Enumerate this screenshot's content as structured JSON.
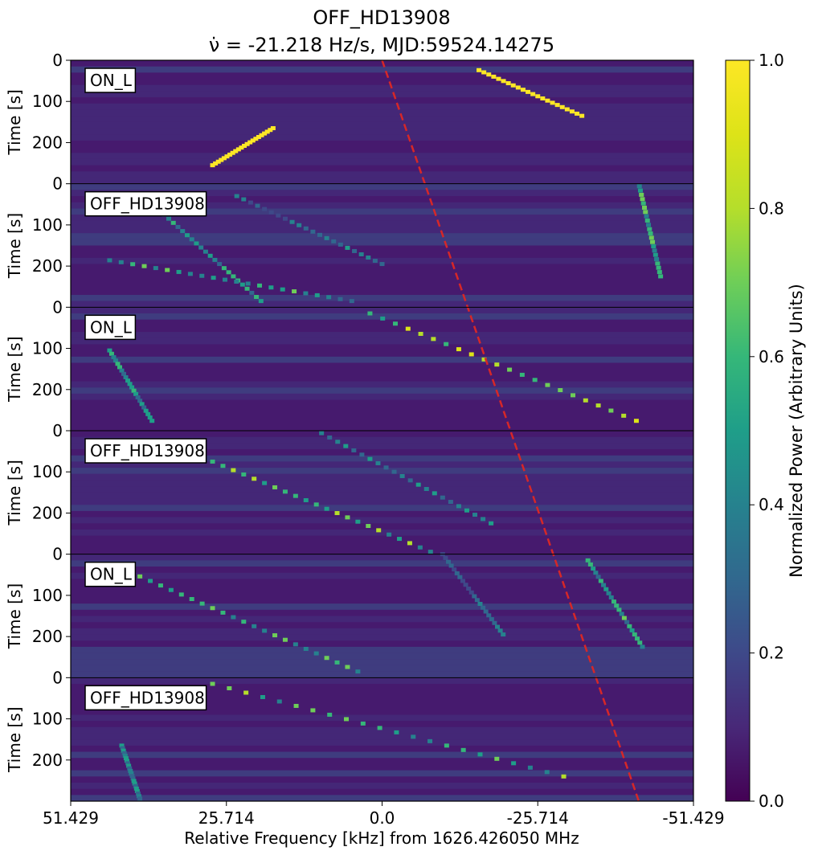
{
  "chart_data": {
    "type": "heatmap",
    "title_line1": "OFF_HD13908",
    "title_line2": "ν̇ = -21.218 Hz/s, MJD:59524.14275",
    "xlabel": "Relative Frequency [kHz] from 1626.426050 MHz",
    "ylabel": "Time [s]",
    "x_ticks": [
      "51.429",
      "25.714",
      "0.0",
      "-25.714",
      "-51.429"
    ],
    "x_tick_values": [
      51.429,
      25.714,
      0.0,
      -25.714,
      -51.429
    ],
    "xlim": [
      51.429,
      -51.429
    ],
    "y_ticks": [
      "0",
      "100",
      "200"
    ],
    "y_tick_values": [
      0,
      100,
      200
    ],
    "panel_duration_s": 300,
    "panels": [
      {
        "label": "ON_L"
      },
      {
        "label": "OFF_HD13908"
      },
      {
        "label": "ON_L"
      },
      {
        "label": "OFF_HD13908"
      },
      {
        "label": "ON_L"
      },
      {
        "label": "OFF_HD13908"
      }
    ],
    "drift_line": {
      "drift_rate_hz_per_s": -21.218,
      "start_freq_khz": 0.0,
      "end_freq_khz": -42.4,
      "color": "#d62728",
      "style": "dashed"
    },
    "colorbar": {
      "label": "Normalized Power (Arbitrary Units)",
      "ticks": [
        "0.0",
        "0.2",
        "0.4",
        "0.6",
        "0.8",
        "1.0"
      ],
      "range": [
        0.0,
        1.0
      ],
      "colormap": "viridis"
    }
  }
}
